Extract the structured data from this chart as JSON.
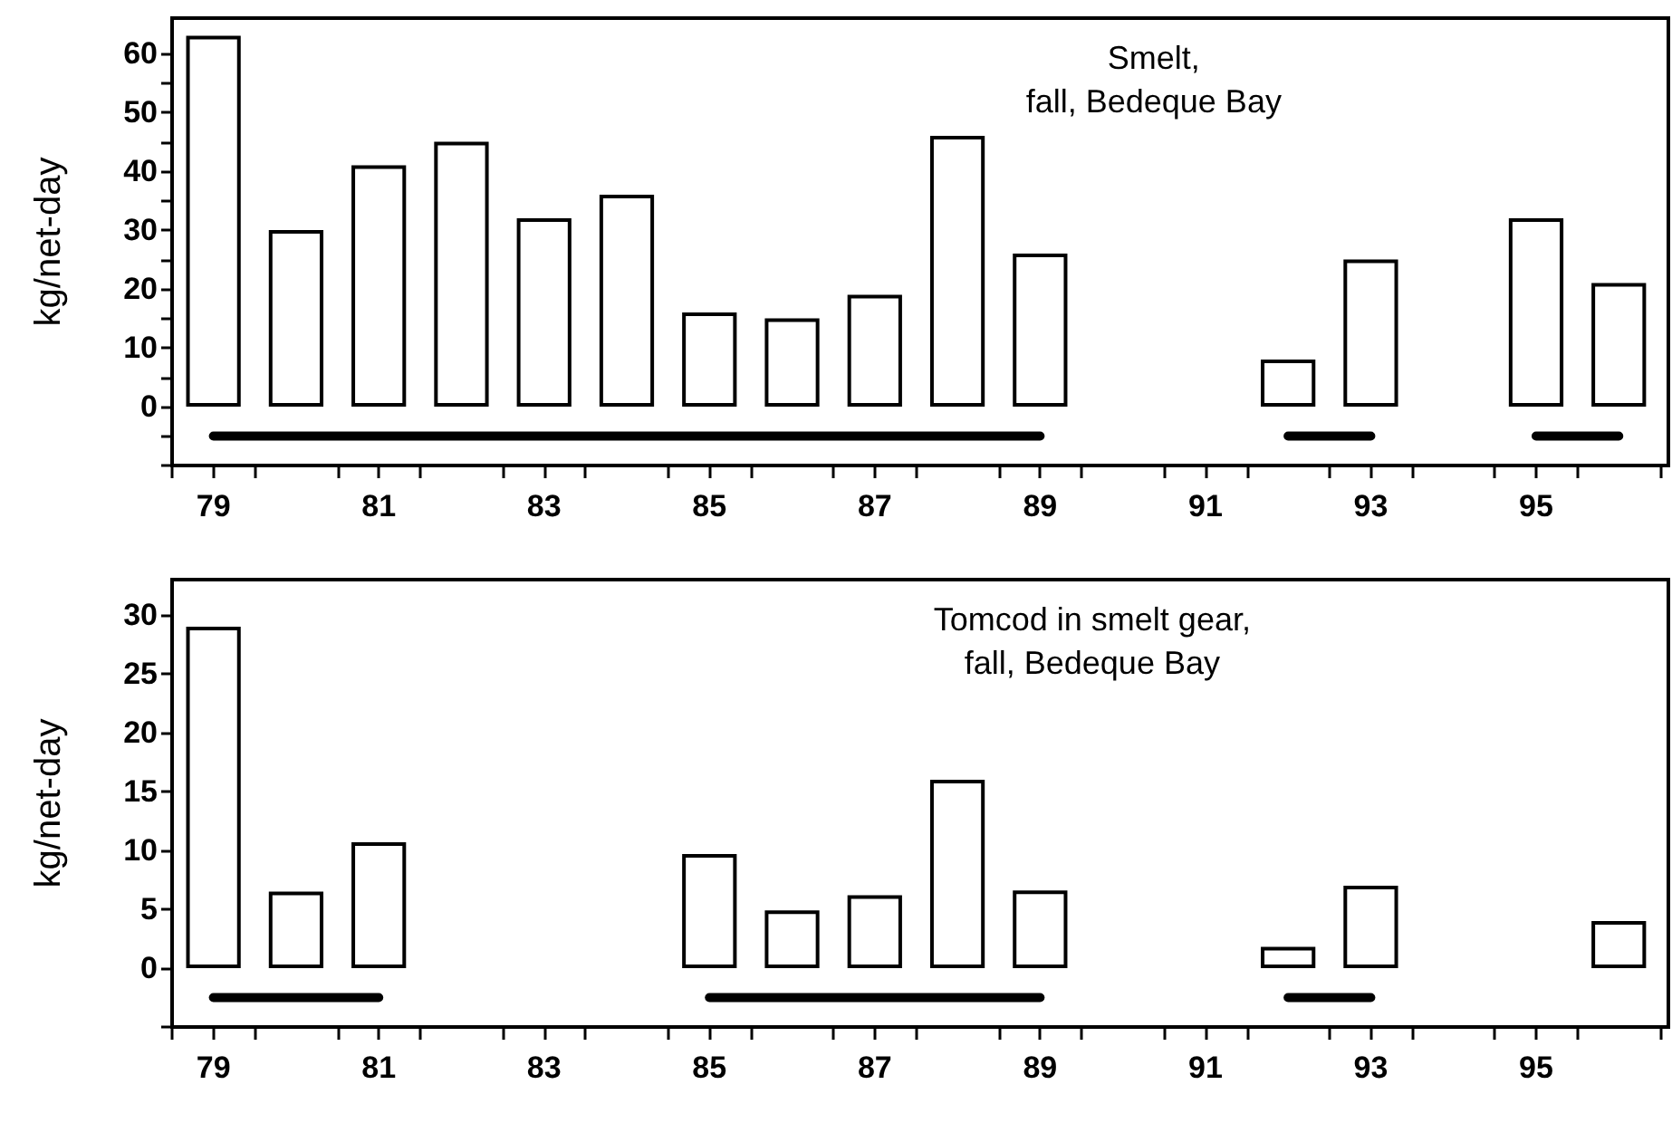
{
  "chart_data": [
    {
      "type": "bar",
      "title": "Smelt,\nfall, Bedeque Bay",
      "ylabel": "kg/net-day",
      "x": [
        79,
        80,
        81,
        82,
        83,
        84,
        85,
        86,
        87,
        88,
        89,
        90,
        91,
        92,
        93,
        94,
        95,
        96
      ],
      "series": [
        {
          "color": "#ffffff",
          "values": [
            63,
            30,
            41,
            45,
            32,
            36,
            16,
            15,
            19,
            46,
            26,
            null,
            null,
            8,
            25,
            null,
            32,
            21
          ]
        },
        {
          "type": "line",
          "color": "#000000",
          "x": [
            79,
            89
          ],
          "values": [
            -5,
            -5
          ]
        },
        {
          "type": "line",
          "color": "#000000",
          "x": [
            92,
            93
          ],
          "values": [
            -5,
            -5
          ]
        },
        {
          "type": "line",
          "color": "#000000",
          "x": [
            95,
            96
          ],
          "values": [
            -5,
            -5
          ]
        }
      ],
      "xlim": [
        78.5,
        96.6
      ],
      "xticks": [
        {
          "value": 78.5,
          "label": null
        },
        {
          "value": 79,
          "label": "79"
        },
        {
          "value": 79.5,
          "label": null
        },
        {
          "value": 80.5,
          "label": null
        },
        {
          "value": 81,
          "label": "81"
        },
        {
          "value": 81.5,
          "label": null
        },
        {
          "value": 82.5,
          "label": null
        },
        {
          "value": 83,
          "label": "83"
        },
        {
          "value": 83.5,
          "label": null
        },
        {
          "value": 84.5,
          "label": null
        },
        {
          "value": 85,
          "label": "85"
        },
        {
          "value": 85.5,
          "label": null
        },
        {
          "value": 86.5,
          "label": null
        },
        {
          "value": 87,
          "label": "87"
        },
        {
          "value": 87.5,
          "label": null
        },
        {
          "value": 88.5,
          "label": null
        },
        {
          "value": 89,
          "label": "89"
        },
        {
          "value": 89.5,
          "label": null
        },
        {
          "value": 90.5,
          "label": null
        },
        {
          "value": 91,
          "label": "91"
        },
        {
          "value": 91.5,
          "label": null
        },
        {
          "value": 92.5,
          "label": null
        },
        {
          "value": 93,
          "label": "93"
        },
        {
          "value": 93.5,
          "label": null
        },
        {
          "value": 94.5,
          "label": null
        },
        {
          "value": 95,
          "label": "95"
        },
        {
          "value": 95.5,
          "label": null
        },
        {
          "value": 96.5,
          "label": null
        }
      ],
      "ylim": [
        -10,
        66
      ],
      "yticks": [
        {
          "value": -10,
          "label": null
        },
        {
          "value": -5,
          "label": null
        },
        0,
        {
          "value": 5,
          "label": null
        },
        10,
        {
          "value": 15,
          "label": null
        },
        20,
        {
          "value": 25,
          "label": null
        },
        30,
        {
          "value": 35,
          "label": null
        },
        40,
        {
          "value": 45,
          "label": null
        },
        50,
        {
          "value": 55,
          "label": null
        },
        60
      ],
      "grid": false,
      "marker": "none"
    },
    {
      "type": "bar",
      "title": "Tomcod in smelt gear,\nfall, Bedeque Bay",
      "ylabel": "kg/net-day",
      "x": [
        79,
        80,
        81,
        82,
        83,
        84,
        85,
        86,
        87,
        88,
        89,
        90,
        91,
        92,
        93,
        94,
        95,
        96
      ],
      "series": [
        {
          "color": "#ffffff",
          "values": [
            29,
            6.5,
            10.7,
            null,
            null,
            null,
            9.7,
            4.9,
            6.2,
            16,
            6.6,
            null,
            null,
            1.8,
            7,
            null,
            null,
            4
          ]
        },
        {
          "type": "line",
          "color": "#000000",
          "x": [
            79,
            81
          ],
          "values": [
            -2.5,
            -2.5
          ]
        },
        {
          "type": "line",
          "color": "#000000",
          "x": [
            85,
            89
          ],
          "values": [
            -2.5,
            -2.5
          ]
        },
        {
          "type": "line",
          "color": "#000000",
          "x": [
            92,
            93
          ],
          "values": [
            -2.5,
            -2.5
          ]
        }
      ],
      "xlim": [
        78.5,
        96.6
      ],
      "xticks": [
        {
          "value": 78.5,
          "label": null
        },
        {
          "value": 79,
          "label": "79"
        },
        {
          "value": 79.5,
          "label": null
        },
        {
          "value": 80.5,
          "label": null
        },
        {
          "value": 81,
          "label": "81"
        },
        {
          "value": 81.5,
          "label": null
        },
        {
          "value": 82.5,
          "label": null
        },
        {
          "value": 83,
          "label": "83"
        },
        {
          "value": 83.5,
          "label": null
        },
        {
          "value": 84.5,
          "label": null
        },
        {
          "value": 85,
          "label": "85"
        },
        {
          "value": 85.5,
          "label": null
        },
        {
          "value": 86.5,
          "label": null
        },
        {
          "value": 87,
          "label": "87"
        },
        {
          "value": 87.5,
          "label": null
        },
        {
          "value": 88.5,
          "label": null
        },
        {
          "value": 89,
          "label": "89"
        },
        {
          "value": 89.5,
          "label": null
        },
        {
          "value": 90.5,
          "label": null
        },
        {
          "value": 91,
          "label": "91"
        },
        {
          "value": 91.5,
          "label": null
        },
        {
          "value": 92.5,
          "label": null
        },
        {
          "value": 93,
          "label": "93"
        },
        {
          "value": 93.5,
          "label": null
        },
        {
          "value": 94.5,
          "label": null
        },
        {
          "value": 95,
          "label": "95"
        },
        {
          "value": 95.5,
          "label": null
        },
        {
          "value": 96.5,
          "label": null
        }
      ],
      "ylim": [
        -5,
        33
      ],
      "yticks": [
        {
          "value": -5,
          "label": null
        },
        0,
        5,
        10,
        15,
        20,
        25,
        30
      ],
      "grid": false,
      "marker": "none"
    }
  ]
}
